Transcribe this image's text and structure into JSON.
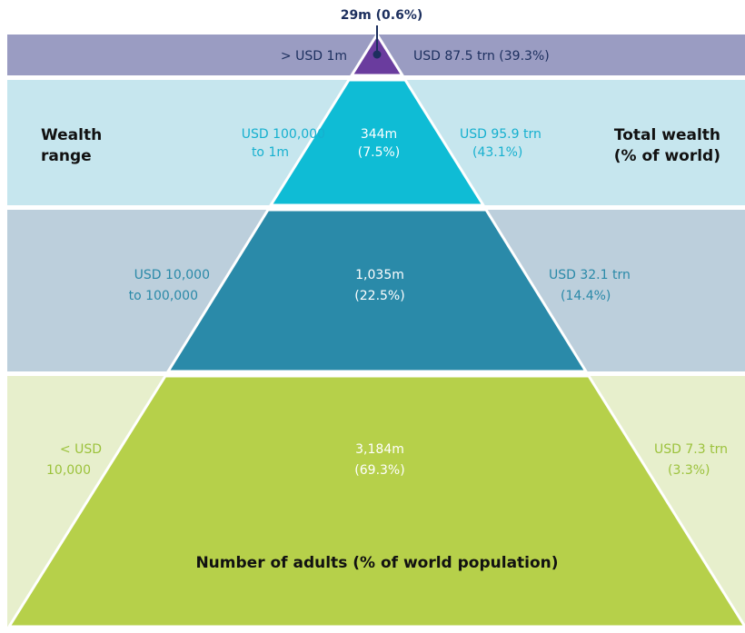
{
  "top_label": "29m (0.6%)",
  "wealth_range_label": [
    "Wealth",
    "range"
  ],
  "total_wealth_label": [
    "Total wealth",
    "(% of world)"
  ],
  "adults_label": "Number of adults (% of world population)",
  "tiers": [
    {
      "range": [
        "> USD 1m"
      ],
      "wealth": [
        "USD 87.5 trn (39.3%)"
      ]
    },
    {
      "range": [
        "USD 100,000",
        "to 1m"
      ],
      "adults": [
        "344m",
        "(7.5%)"
      ],
      "wealth": [
        "USD 95.9 trn",
        "(43.1%)"
      ]
    },
    {
      "range": [
        "USD 10,000",
        "to 100,000"
      ],
      "adults": [
        "1,035m",
        "(22.5%)"
      ],
      "wealth": [
        "USD 32.1 trn",
        "(14.4%)"
      ]
    },
    {
      "range": [
        "< USD",
        "10,000"
      ],
      "adults": [
        "3,184m",
        "(69.3%)"
      ],
      "wealth": [
        "USD 7.3 trn",
        "(3.3%)"
      ]
    }
  ]
}
